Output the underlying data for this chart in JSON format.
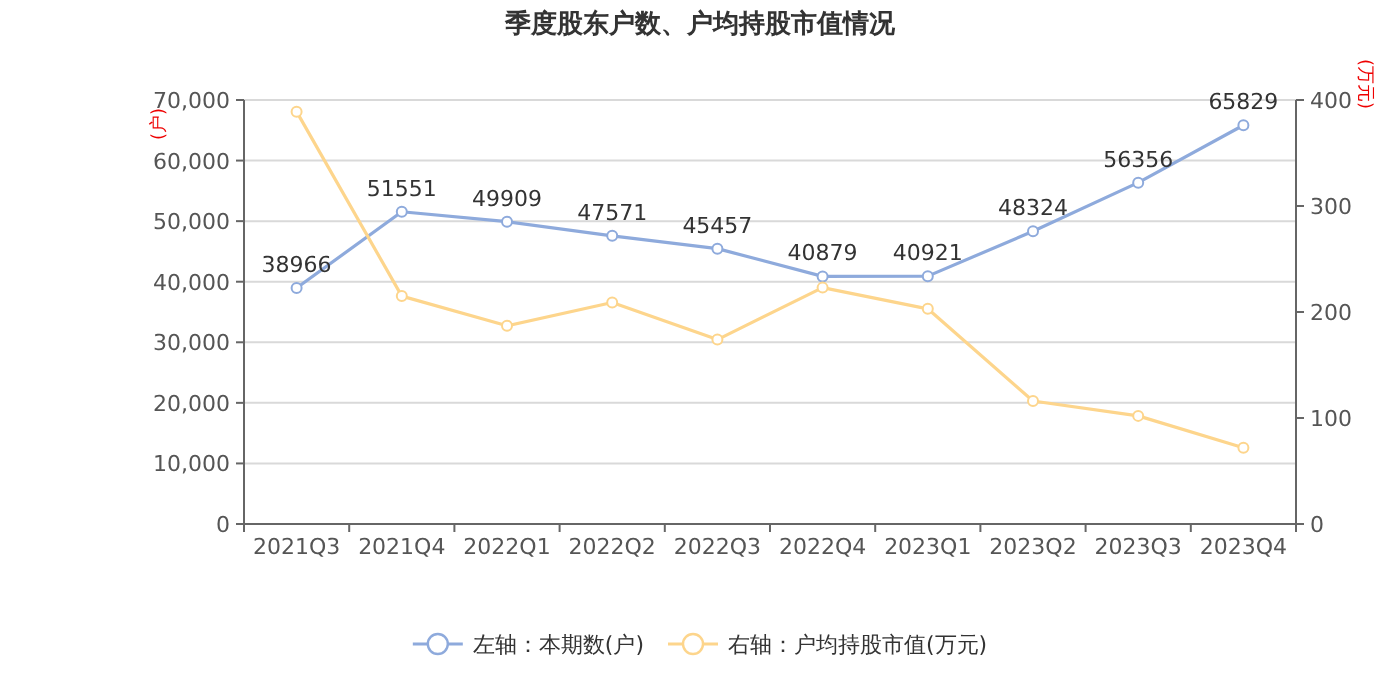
{
  "chart_data": {
    "type": "line",
    "title": "季度股东户数、户均持股市值情况",
    "ylabel": "(户)",
    "y2label": "(万元)",
    "categories": [
      "2021Q3",
      "2021Q4",
      "2022Q1",
      "2022Q2",
      "2022Q3",
      "2022Q4",
      "2023Q1",
      "2023Q2",
      "2023Q3",
      "2023Q4"
    ],
    "series": [
      {
        "name": "左轴：本期数(户)",
        "color": "#8eaadc",
        "values": [
          38966,
          51551,
          49909,
          47571,
          45457,
          40879,
          40921,
          48324,
          56356,
          65829
        ],
        "value_labels": [
          "38966",
          "51551",
          "49909",
          "47571",
          "45457",
          "40879",
          "40921",
          "48324",
          "56356",
          "65829"
        ]
      },
      {
        "name": "右轴：户均持股市值(万元)",
        "color": "#fdd58c",
        "axis": "y2",
        "values": [
          389,
          215,
          187,
          209,
          174,
          223,
          203,
          116,
          102,
          72
        ]
      }
    ],
    "ylim": [
      0,
      70000
    ],
    "yticks": [
      {
        "value": 0,
        "label": "0"
      },
      {
        "value": 10000,
        "label": "10,000"
      },
      {
        "value": 20000,
        "label": "20,000"
      },
      {
        "value": 30000,
        "label": "30,000"
      },
      {
        "value": 40000,
        "label": "40,000"
      },
      {
        "value": 50000,
        "label": "50,000"
      },
      {
        "value": 60000,
        "label": "60,000"
      },
      {
        "value": 70000,
        "label": "70,000"
      }
    ],
    "y2lim": [
      0,
      400
    ],
    "y2ticks": [
      0,
      100,
      200,
      300,
      400
    ],
    "grid": "y",
    "legend": "bottom",
    "marker": "circle",
    "line_style": "solid"
  }
}
